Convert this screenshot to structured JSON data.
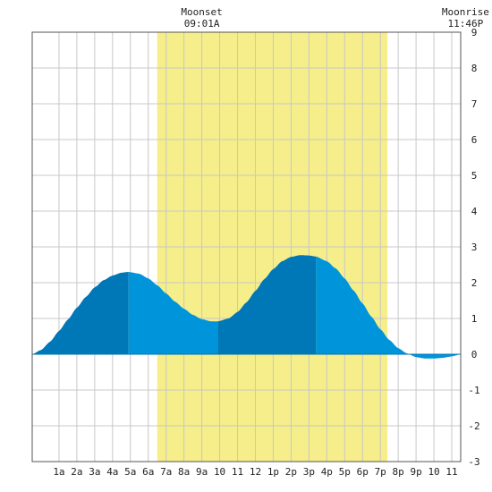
{
  "chart_data": {
    "type": "area",
    "x_unit": "hour of day",
    "xlim": [
      -0.5,
      23.5
    ],
    "ylim": [
      -3,
      9
    ],
    "grid": true,
    "x_ticks": [
      {
        "x": 1,
        "label": "1a"
      },
      {
        "x": 2,
        "label": "2a"
      },
      {
        "x": 3,
        "label": "3a"
      },
      {
        "x": 4,
        "label": "4a"
      },
      {
        "x": 5,
        "label": "5a"
      },
      {
        "x": 6,
        "label": "6a"
      },
      {
        "x": 7,
        "label": "7a"
      },
      {
        "x": 8,
        "label": "8a"
      },
      {
        "x": 9,
        "label": "9a"
      },
      {
        "x": 10,
        "label": "10"
      },
      {
        "x": 11,
        "label": "11"
      },
      {
        "x": 12,
        "label": "12"
      },
      {
        "x": 13,
        "label": "1p"
      },
      {
        "x": 14,
        "label": "2p"
      },
      {
        "x": 15,
        "label": "3p"
      },
      {
        "x": 16,
        "label": "4p"
      },
      {
        "x": 17,
        "label": "5p"
      },
      {
        "x": 18,
        "label": "6p"
      },
      {
        "x": 19,
        "label": "7p"
      },
      {
        "x": 20,
        "label": "8p"
      },
      {
        "x": 21,
        "label": "9p"
      },
      {
        "x": 22,
        "label": "10"
      },
      {
        "x": 23,
        "label": "11"
      }
    ],
    "y_ticks": [
      -3,
      -2,
      -1,
      0,
      1,
      2,
      3,
      4,
      5,
      6,
      7,
      8,
      9
    ],
    "daylight": {
      "start": 6.5,
      "end": 19.4
    },
    "tide_curve": {
      "x": [
        -0.5,
        0,
        0.5,
        1,
        1.5,
        2,
        2.5,
        3,
        3.5,
        4,
        4.5,
        4.9,
        5.5,
        6,
        6.5,
        7,
        7.5,
        8,
        8.5,
        9,
        9.5,
        9.9,
        10.5,
        11,
        11.5,
        12,
        12.5,
        13,
        13.5,
        14,
        14.5,
        15,
        15.4,
        16,
        16.5,
        17,
        17.5,
        18,
        18.5,
        19,
        19.5,
        20,
        20.5,
        21,
        21.5,
        22,
        22.5,
        23,
        23.5
      ],
      "y": [
        0.0,
        0.12,
        0.35,
        0.65,
        0.97,
        1.3,
        1.6,
        1.87,
        2.07,
        2.2,
        2.28,
        2.3,
        2.25,
        2.12,
        1.93,
        1.7,
        1.47,
        1.27,
        1.1,
        0.98,
        0.92,
        0.92,
        1.0,
        1.18,
        1.45,
        1.77,
        2.1,
        2.38,
        2.6,
        2.72,
        2.77,
        2.76,
        2.73,
        2.6,
        2.4,
        2.12,
        1.78,
        1.42,
        1.05,
        0.7,
        0.4,
        0.17,
        0.02,
        -0.08,
        -0.12,
        -0.12,
        -0.1,
        -0.06,
        0.0
      ]
    },
    "tide_bands": [
      {
        "from": -0.5,
        "to": 4.9,
        "color": "#0077b6"
      },
      {
        "from": 4.9,
        "to": 9.9,
        "color": "#0095da"
      },
      {
        "from": 9.9,
        "to": 15.4,
        "color": "#0077b6"
      },
      {
        "from": 15.4,
        "to": 23.5,
        "color": "#0095da"
      }
    ],
    "colors": {
      "daylight": "#f5ee8a",
      "grid": "#c8c8c8",
      "frame": "#555555",
      "zero_line": "#0077b6"
    },
    "annotations": [
      {
        "name": "moonset",
        "title": "Moonset",
        "time": "09:01A",
        "x": 9.0
      },
      {
        "name": "moonrise",
        "title": "Moonrise",
        "time": "11:46P",
        "x": 23.77
      }
    ]
  }
}
